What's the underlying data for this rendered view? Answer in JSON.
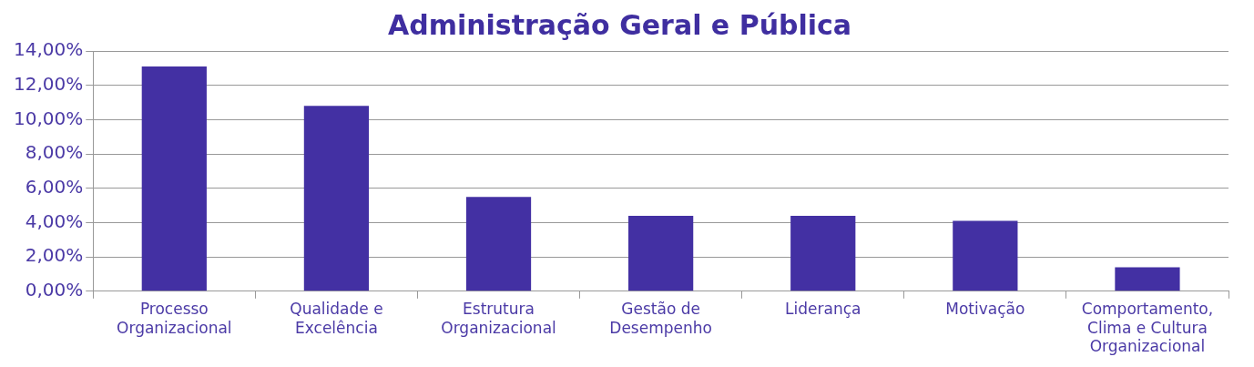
{
  "chart_data": {
    "type": "bar",
    "title": "Administração Geral e Pública",
    "categories": [
      "Processo Organizacional",
      "Qualidade e Excelência",
      "Estrutura Organizacional",
      "Gestão de Desempenho",
      "Liderança",
      "Motivação",
      "Comportamento, Clima e Cultura Organizacional"
    ],
    "values": [
      13.1,
      10.8,
      5.5,
      4.4,
      4.4,
      4.1,
      1.4
    ],
    "color": "#4330a3",
    "ylim": [
      0,
      14
    ],
    "yticks": [
      {
        "value": 0,
        "label": "0,00%"
      },
      {
        "value": 2,
        "label": "2,00%"
      },
      {
        "value": 4,
        "label": "4,00%"
      },
      {
        "value": 6,
        "label": "6,00%"
      },
      {
        "value": 8,
        "label": "8,00%"
      },
      {
        "value": 10,
        "label": "10,00%"
      },
      {
        "value": 12,
        "label": "12,00%"
      },
      {
        "value": 14,
        "label": "14,00%"
      }
    ],
    "grid": "y"
  }
}
